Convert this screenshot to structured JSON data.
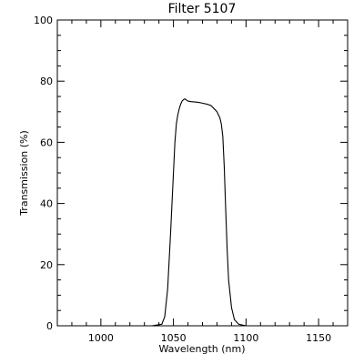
{
  "chart_data": {
    "type": "line",
    "title": "Filter 5107",
    "xlabel": "Wavelength (nm)",
    "ylabel": "Transmission (%)",
    "xlim": [
      970,
      1170
    ],
    "ylim": [
      0,
      100
    ],
    "xticks": [
      1000,
      1050,
      1100,
      1150
    ],
    "yticks": [
      0,
      20,
      40,
      60,
      80,
      100
    ],
    "grid": false,
    "line_color": "#000000",
    "series": [
      {
        "x": [
          1025,
          1035,
          1042,
          1044,
          1046,
          1048,
          1050,
          1051,
          1052,
          1053,
          1054,
          1055,
          1056,
          1057,
          1058,
          1059,
          1060,
          1062,
          1065,
          1068,
          1070,
          1073,
          1076,
          1078,
          1080,
          1082,
          1083,
          1084,
          1085,
          1086,
          1087,
          1088,
          1090,
          1092,
          1095,
          1100,
          1110
        ],
        "y": [
          0,
          0,
          0.5,
          3,
          12,
          30,
          50,
          60,
          66,
          69,
          71,
          72.5,
          73.5,
          74,
          74.2,
          73.8,
          73.5,
          73.3,
          73.2,
          73,
          72.8,
          72.5,
          72,
          71,
          70,
          68,
          66,
          62,
          52,
          38,
          25,
          15,
          6,
          2,
          0.5,
          0,
          0
        ]
      }
    ]
  }
}
